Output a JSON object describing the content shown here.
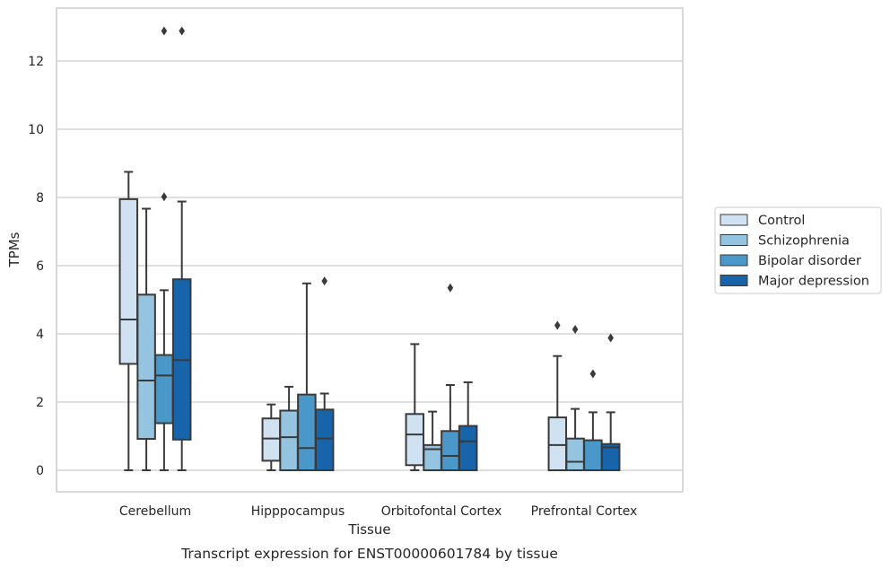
{
  "chart_data": {
    "type": "box",
    "caption": "Transcript expression for ENST00000601784 by tissue",
    "xlabel": "Tissue",
    "ylabel": "TPMs",
    "ylim": [
      -0.6,
      13.5
    ],
    "yticks": [
      0,
      2,
      4,
      6,
      8,
      10,
      12
    ],
    "grid": true,
    "legend_position": "right",
    "categories": [
      "Cerebellum",
      "Hipppocampus",
      "Orbitofontal Cortex",
      "Prefrontal Cortex"
    ],
    "series": [
      {
        "name": "Control",
        "color": "#d0e1f2",
        "boxes": [
          {
            "whisker_low": 0,
            "q1": 3.12,
            "median": 4.42,
            "q3": 7.95,
            "whisker_high": 8.75,
            "outliers": []
          },
          {
            "whisker_low": 0,
            "q1": 0.28,
            "median": 0.93,
            "q3": 1.52,
            "whisker_high": 1.93,
            "outliers": []
          },
          {
            "whisker_low": 0,
            "q1": 0.15,
            "median": 1.05,
            "q3": 1.65,
            "whisker_high": 3.7,
            "outliers": []
          },
          {
            "whisker_low": 0,
            "q1": 0,
            "median": 0.74,
            "q3": 1.55,
            "whisker_high": 3.35,
            "outliers": [
              4.25
            ]
          }
        ]
      },
      {
        "name": "Schizophrenia",
        "color": "#94c4df",
        "boxes": [
          {
            "whisker_low": 0,
            "q1": 0.92,
            "median": 2.63,
            "q3": 5.15,
            "whisker_high": 7.67,
            "outliers": []
          },
          {
            "whisker_low": 0,
            "q1": 0,
            "median": 0.97,
            "q3": 1.75,
            "whisker_high": 2.45,
            "outliers": []
          },
          {
            "whisker_low": 0,
            "q1": 0,
            "median": 0.62,
            "q3": 0.74,
            "whisker_high": 1.72,
            "outliers": []
          },
          {
            "whisker_low": 0,
            "q1": 0,
            "median": 0.25,
            "q3": 0.93,
            "whisker_high": 1.8,
            "outliers": [
              4.13
            ]
          }
        ]
      },
      {
        "name": "Bipolar disorder",
        "color": "#4a98c9",
        "boxes": [
          {
            "whisker_low": 0,
            "q1": 1.38,
            "median": 2.78,
            "q3": 3.38,
            "whisker_high": 5.28,
            "outliers": [
              8.02,
              12.88
            ]
          },
          {
            "whisker_low": 0,
            "q1": 0,
            "median": 0.65,
            "q3": 2.22,
            "whisker_high": 5.48,
            "outliers": []
          },
          {
            "whisker_low": 0,
            "q1": 0,
            "median": 0.42,
            "q3": 1.15,
            "whisker_high": 2.5,
            "outliers": [
              5.35
            ]
          },
          {
            "whisker_low": 0,
            "q1": 0,
            "median": 0,
            "q3": 0.88,
            "whisker_high": 1.7,
            "outliers": [
              2.83
            ]
          }
        ]
      },
      {
        "name": "Major depression",
        "color": "#1764ab",
        "boxes": [
          {
            "whisker_low": 0,
            "q1": 0.9,
            "median": 3.23,
            "q3": 5.6,
            "whisker_high": 7.88,
            "outliers": [
              12.88
            ]
          },
          {
            "whisker_low": 0,
            "q1": 0,
            "median": 0.93,
            "q3": 1.78,
            "whisker_high": 2.25,
            "outliers": [
              5.55
            ]
          },
          {
            "whisker_low": 0,
            "q1": 0,
            "median": 0.85,
            "q3": 1.3,
            "whisker_high": 2.58,
            "outliers": []
          },
          {
            "whisker_low": 0,
            "q1": 0,
            "median": 0.67,
            "q3": 0.77,
            "whisker_high": 1.7,
            "outliers": [
              3.88
            ]
          }
        ]
      }
    ]
  }
}
